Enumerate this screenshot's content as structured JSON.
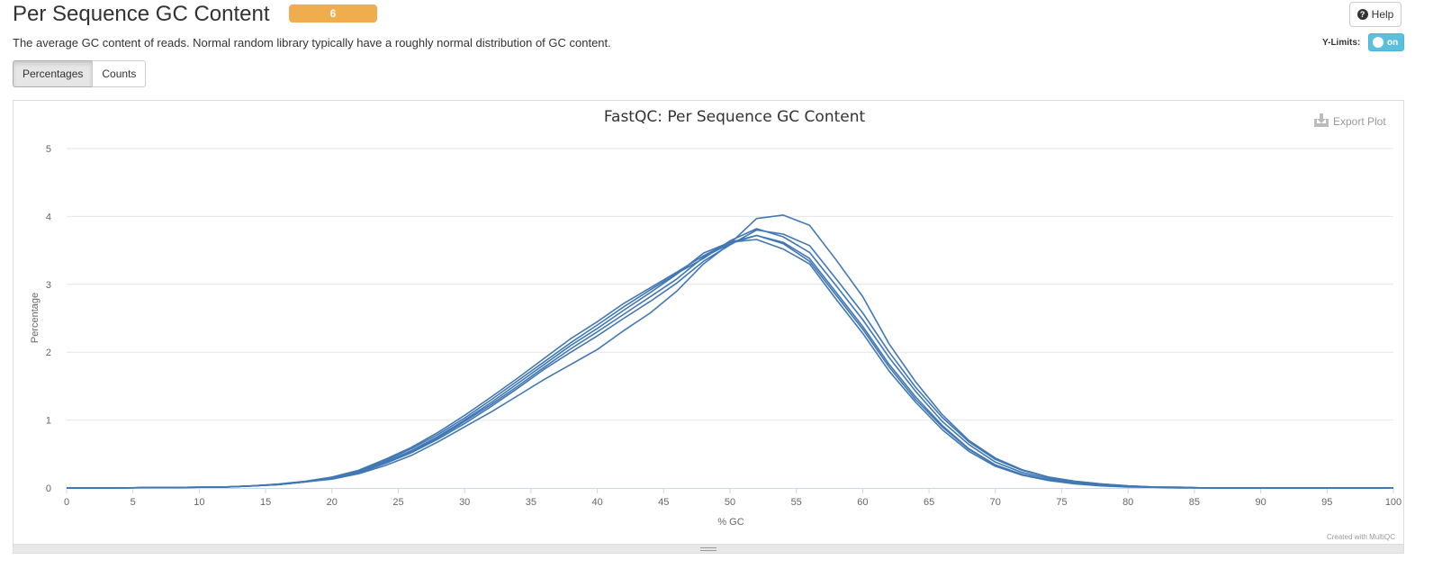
{
  "header": {
    "title": "Per Sequence GC Content",
    "badge_count": "6",
    "help_label": "Help",
    "description": "The average GC content of reads. Normal random library typically have a roughly normal distribution of GC content.",
    "ylimits_label": "Y-Limits:",
    "ylimits_state": "on"
  },
  "tabs": {
    "percentages_label": "Percentages",
    "counts_label": "Counts",
    "active": "Percentages"
  },
  "plot": {
    "export_label": "Export Plot",
    "credit": "Created with MultiQC"
  },
  "colors": {
    "line": "#4178b3",
    "badge": "#f0ad4e",
    "toggle": "#5bc0de"
  },
  "chart_data": {
    "type": "line",
    "title": "FastQC: Per Sequence GC Content",
    "xlabel": "% GC",
    "ylabel": "Percentage",
    "xlim": [
      0,
      100
    ],
    "ylim": [
      0,
      5
    ],
    "xticks": [
      0,
      5,
      10,
      15,
      20,
      25,
      30,
      35,
      40,
      45,
      50,
      55,
      60,
      65,
      70,
      75,
      80,
      85,
      90,
      95,
      100
    ],
    "yticks": [
      0,
      1,
      2,
      3,
      4,
      5
    ],
    "grid": true,
    "x": [
      0,
      2,
      4,
      6,
      8,
      10,
      12,
      14,
      16,
      18,
      20,
      22,
      24,
      26,
      28,
      30,
      32,
      34,
      36,
      38,
      40,
      42,
      44,
      46,
      48,
      50,
      52,
      54,
      56,
      58,
      60,
      62,
      64,
      66,
      68,
      70,
      72,
      74,
      76,
      78,
      80,
      82,
      84,
      86,
      88,
      90,
      92,
      94,
      96,
      98,
      100
    ],
    "series": [
      {
        "values": [
          0,
          0,
          0,
          0.005,
          0.008,
          0.01,
          0.015,
          0.03,
          0.06,
          0.1,
          0.16,
          0.26,
          0.42,
          0.6,
          0.82,
          1.07,
          1.34,
          1.62,
          1.91,
          2.2,
          2.45,
          2.72,
          2.95,
          3.18,
          3.42,
          3.62,
          3.72,
          3.62,
          3.38,
          2.88,
          2.38,
          1.82,
          1.34,
          0.92,
          0.58,
          0.34,
          0.2,
          0.12,
          0.07,
          0.04,
          0.02,
          0.01,
          0.005,
          0,
          0,
          0,
          0,
          0,
          0,
          0,
          0
        ]
      },
      {
        "values": [
          0,
          0,
          0,
          0.005,
          0.008,
          0.01,
          0.015,
          0.03,
          0.05,
          0.09,
          0.14,
          0.24,
          0.38,
          0.55,
          0.76,
          1.0,
          1.26,
          1.54,
          1.82,
          2.1,
          2.35,
          2.62,
          2.88,
          3.15,
          3.46,
          3.62,
          3.66,
          3.52,
          3.3,
          2.78,
          2.28,
          1.72,
          1.26,
          0.86,
          0.54,
          0.32,
          0.19,
          0.11,
          0.06,
          0.03,
          0.015,
          0.01,
          0,
          0,
          0,
          0,
          0,
          0,
          0,
          0,
          0
        ]
      },
      {
        "values": [
          0,
          0,
          0,
          0.005,
          0.008,
          0.01,
          0.015,
          0.03,
          0.05,
          0.09,
          0.13,
          0.21,
          0.33,
          0.48,
          0.68,
          0.9,
          1.12,
          1.36,
          1.6,
          1.82,
          2.04,
          2.32,
          2.58,
          2.9,
          3.3,
          3.6,
          3.97,
          4.02,
          3.87,
          3.36,
          2.82,
          2.12,
          1.56,
          1.08,
          0.7,
          0.44,
          0.27,
          0.16,
          0.1,
          0.06,
          0.03,
          0.015,
          0.01,
          0,
          0,
          0,
          0,
          0,
          0,
          0,
          0
        ]
      },
      {
        "values": [
          0,
          0,
          0,
          0.005,
          0.008,
          0.01,
          0.015,
          0.03,
          0.05,
          0.09,
          0.14,
          0.22,
          0.36,
          0.52,
          0.72,
          0.95,
          1.2,
          1.47,
          1.75,
          2.0,
          2.24,
          2.5,
          2.75,
          3.02,
          3.34,
          3.58,
          3.8,
          3.74,
          3.57,
          3.08,
          2.58,
          2.0,
          1.48,
          1.04,
          0.68,
          0.42,
          0.26,
          0.16,
          0.1,
          0.06,
          0.03,
          0.015,
          0.01,
          0,
          0,
          0,
          0,
          0,
          0,
          0,
          0
        ]
      },
      {
        "values": [
          0,
          0,
          0,
          0.005,
          0.008,
          0.01,
          0.015,
          0.03,
          0.055,
          0.095,
          0.15,
          0.25,
          0.4,
          0.58,
          0.79,
          1.03,
          1.3,
          1.58,
          1.86,
          2.14,
          2.4,
          2.67,
          2.92,
          3.16,
          3.38,
          3.64,
          3.82,
          3.7,
          3.47,
          2.98,
          2.48,
          1.92,
          1.42,
          0.98,
          0.64,
          0.38,
          0.23,
          0.14,
          0.08,
          0.05,
          0.025,
          0.012,
          0.005,
          0,
          0,
          0,
          0,
          0,
          0,
          0,
          0
        ]
      },
      {
        "values": [
          0,
          0,
          0,
          0.005,
          0.008,
          0.01,
          0.015,
          0.03,
          0.05,
          0.09,
          0.14,
          0.23,
          0.37,
          0.54,
          0.74,
          0.98,
          1.23,
          1.5,
          1.78,
          2.05,
          2.3,
          2.56,
          2.82,
          3.08,
          3.4,
          3.6,
          3.72,
          3.6,
          3.34,
          2.84,
          2.34,
          1.78,
          1.3,
          0.9,
          0.57,
          0.34,
          0.2,
          0.12,
          0.07,
          0.04,
          0.02,
          0.01,
          0.005,
          0,
          0,
          0,
          0,
          0,
          0,
          0,
          0
        ]
      }
    ]
  }
}
